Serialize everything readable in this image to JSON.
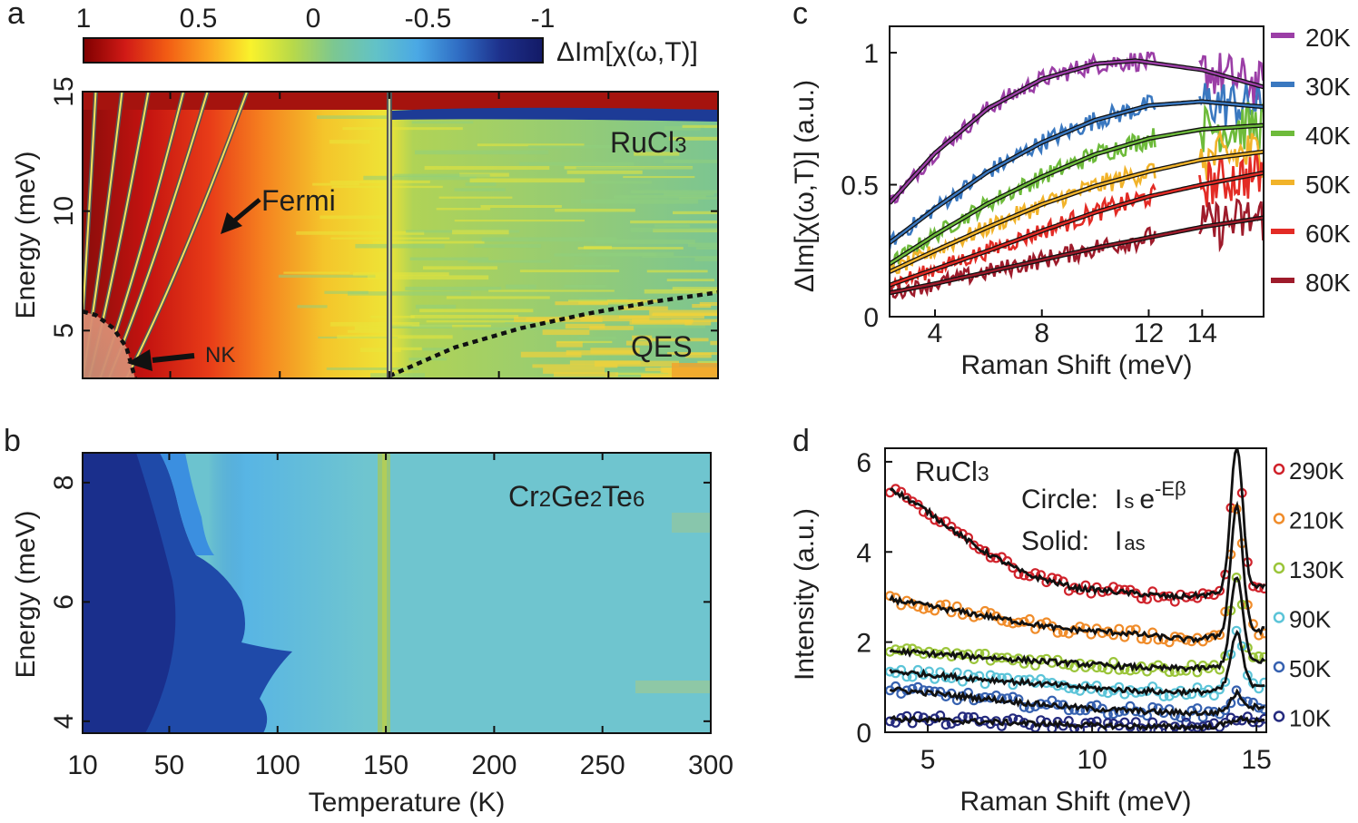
{
  "colors": {
    "colormap": [
      "#7f0000",
      "#d11a16",
      "#f25c14",
      "#fba521",
      "#f9f22c",
      "#b8d949",
      "#7cc791",
      "#62c2c7",
      "#4aa8e5",
      "#2f6cc3",
      "#1d2f8a",
      "#131a66"
    ],
    "rucl3_fill": [
      "#8a0d0b",
      "#c41310",
      "#e83c18",
      "#f57e1f",
      "#f4c52b",
      "#eee436",
      "#b0d356",
      "#7cc591"
    ],
    "cgt_fill": [
      "#1e3e9c",
      "#2459c2",
      "#3a8ee0",
      "#58b5e4",
      "#6fc5cf",
      "#8bc79a",
      "#b2d05f"
    ],
    "panel_c_series": [
      "#9b3ea6",
      "#3a78c0",
      "#6ebb3b",
      "#f1b32a",
      "#e32b25",
      "#9e1b2b"
    ],
    "panel_d_series": [
      "#d0222b",
      "#f08c2a",
      "#9bc53a",
      "#5bc4d8",
      "#3661b0",
      "#242a7e"
    ]
  },
  "panel_labels": [
    "a",
    "b",
    "c",
    "d"
  ],
  "colorbar": {
    "label": "ΔIm[χ(ω,T)]",
    "ticks": [
      {
        "v": 1,
        "t": "1"
      },
      {
        "v": 0.5,
        "t": "0.5"
      },
      {
        "v": 0,
        "t": "0"
      },
      {
        "v": -0.5,
        "t": "-0.5"
      },
      {
        "v": -1,
        "t": "-1"
      }
    ]
  },
  "chart_data": [
    {
      "id": "a",
      "type": "heatmap",
      "title": "RuCl3",
      "xlabel": "Temperature (K)",
      "ylabel": "Energy (meV)",
      "xlim": [
        10,
        300
      ],
      "ylim": [
        3,
        15
      ],
      "yticks": [
        5,
        10,
        15
      ],
      "grid": false,
      "annotations": {
        "sample": {
          "main": "RuCl",
          "sub": "3"
        },
        "fermi": "Fermi",
        "nk": "NK",
        "qes": "QES"
      },
      "t_ref": 150,
      "fermi_curves_temp_at_15meV": [
        16,
        28,
        40,
        56,
        67,
        85
      ],
      "fermi_curves_temp_at_3meV": [
        8,
        10,
        13,
        18,
        22,
        30
      ],
      "nk_boundary": [
        [
          10,
          5.8
        ],
        [
          16,
          5.65
        ],
        [
          24,
          5.1
        ],
        [
          30,
          4.3
        ],
        [
          34,
          3.0
        ]
      ],
      "qes_boundary": [
        [
          150,
          3.1
        ],
        [
          180,
          4.3
        ],
        [
          210,
          5.1
        ],
        [
          240,
          5.7
        ],
        [
          270,
          6.2
        ],
        [
          300,
          6.6
        ]
      ]
    },
    {
      "id": "b",
      "type": "heatmap",
      "title": "Cr2Ge2Te6",
      "xlabel": "Temperature (K)",
      "ylabel": "Energy (meV)",
      "xlim": [
        10,
        300
      ],
      "ylim": [
        3.8,
        8.5
      ],
      "xticks": [
        10,
        50,
        100,
        150,
        200,
        250,
        300
      ],
      "yticks": [
        4,
        6,
        8
      ],
      "grid": false,
      "annotations": {
        "sample": [
          {
            "main": "Cr",
            "sub": "2"
          },
          {
            "main": "Ge",
            "sub": "2"
          },
          {
            "main": "Te",
            "sub": "6"
          }
        ]
      }
    },
    {
      "id": "c",
      "type": "line",
      "xlabel": "Raman Shift (meV)",
      "ylabel": "ΔIm[χ(ω,T)] (a.u.)",
      "xlim": [
        2.3,
        16.3
      ],
      "ylim": [
        0,
        1.1
      ],
      "xticks": [
        4,
        8,
        12,
        14
      ],
      "yticks": [
        {
          "v": 0,
          "t": "0"
        },
        {
          "v": 0.5,
          "t": "0.5"
        },
        {
          "v": 1,
          "t": "1"
        }
      ],
      "grid": false,
      "legend": "right",
      "data_gap": [
        12.3,
        13.9
      ],
      "series": [
        {
          "name": "20K",
          "x": [
            2.3,
            4,
            6,
            8,
            10,
            11.5,
            14,
            16.3
          ],
          "fit": [
            0.43,
            0.62,
            0.79,
            0.9,
            0.958,
            0.97,
            0.935,
            0.87
          ]
        },
        {
          "name": "30K",
          "x": [
            2.3,
            4,
            6,
            8,
            10,
            12,
            14,
            16.3
          ],
          "fit": [
            0.28,
            0.41,
            0.55,
            0.66,
            0.745,
            0.8,
            0.815,
            0.795
          ]
        },
        {
          "name": "40K",
          "x": [
            2.3,
            4,
            6,
            8,
            10,
            12,
            14,
            16.3
          ],
          "fit": [
            0.2,
            0.31,
            0.43,
            0.53,
            0.615,
            0.675,
            0.71,
            0.725
          ]
        },
        {
          "name": "50K",
          "x": [
            2.3,
            4,
            6,
            8,
            10,
            12,
            14,
            16.3
          ],
          "fit": [
            0.17,
            0.25,
            0.34,
            0.425,
            0.495,
            0.55,
            0.595,
            0.625
          ]
        },
        {
          "name": "60K",
          "x": [
            2.3,
            4,
            6,
            8,
            10,
            12,
            14,
            16.3
          ],
          "fit": [
            0.12,
            0.18,
            0.25,
            0.325,
            0.395,
            0.455,
            0.5,
            0.545
          ]
        },
        {
          "name": "80K",
          "x": [
            2.3,
            4,
            6,
            8,
            10,
            12,
            14,
            16.3
          ],
          "fit": [
            0.09,
            0.125,
            0.17,
            0.215,
            0.26,
            0.3,
            0.34,
            0.375
          ]
        }
      ]
    },
    {
      "id": "d",
      "type": "scatter",
      "xlabel": "Raman Shift (meV)",
      "ylabel": "Intensity (a.u.)",
      "xlim": [
        3.7,
        15.3
      ],
      "ylim": [
        0,
        6.3
      ],
      "xticks": [
        5,
        10,
        15
      ],
      "yticks": [
        0,
        2,
        4,
        6
      ],
      "grid": false,
      "legend": "right",
      "peak_center": 14.4,
      "formula": {
        "circle_label": "Circle:",
        "circle_i": "I",
        "circle_sub": "s",
        "circle_e": "e",
        "circle_exp": "-Eβ",
        "solid_label": "Solid:",
        "solid_i": "I",
        "solid_sub": "as"
      },
      "series": [
        {
          "name": "290K",
          "x": [
            3.9,
            5,
            6.5,
            8,
            9.5,
            11,
            12.5,
            13.5
          ],
          "base": [
            5.4,
            4.9,
            4.1,
            3.5,
            3.2,
            3.1,
            3.0,
            3.05
          ],
          "peak": 3.2
        },
        {
          "name": "210K",
          "x": [
            3.9,
            5,
            7,
            9,
            11,
            13,
            13.5
          ],
          "base": [
            2.95,
            2.8,
            2.55,
            2.3,
            2.2,
            2.05,
            2.1
          ],
          "peak": 2.85
        },
        {
          "name": "130K",
          "x": [
            3.9,
            6,
            8,
            10,
            12,
            13.5
          ],
          "base": [
            1.8,
            1.7,
            1.6,
            1.5,
            1.42,
            1.42
          ],
          "peak": 1.95
        },
        {
          "name": "90K",
          "x": [
            3.9,
            6,
            8,
            10,
            12,
            13.5
          ],
          "base": [
            1.35,
            1.22,
            1.1,
            0.98,
            0.9,
            0.9
          ],
          "peak": 1.2
        },
        {
          "name": "50K",
          "x": [
            3.9,
            6,
            8,
            10,
            12,
            13.5
          ],
          "base": [
            0.95,
            0.8,
            0.65,
            0.52,
            0.45,
            0.42
          ],
          "peak": 0.35
        },
        {
          "name": "10K",
          "x": [
            3.9,
            6,
            8,
            10,
            12,
            13.5
          ],
          "base": [
            0.3,
            0.25,
            0.2,
            0.15,
            0.12,
            0.12
          ],
          "peak": 0.08
        }
      ]
    }
  ]
}
